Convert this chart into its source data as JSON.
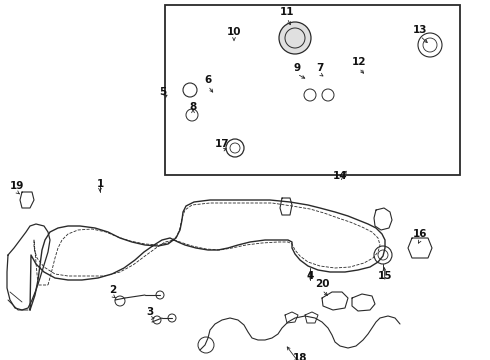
{
  "bg_color": "#ffffff",
  "line_color": "#2a2a2a",
  "text_color": "#111111",
  "fig_width": 4.9,
  "fig_height": 3.6,
  "dpi": 100
}
